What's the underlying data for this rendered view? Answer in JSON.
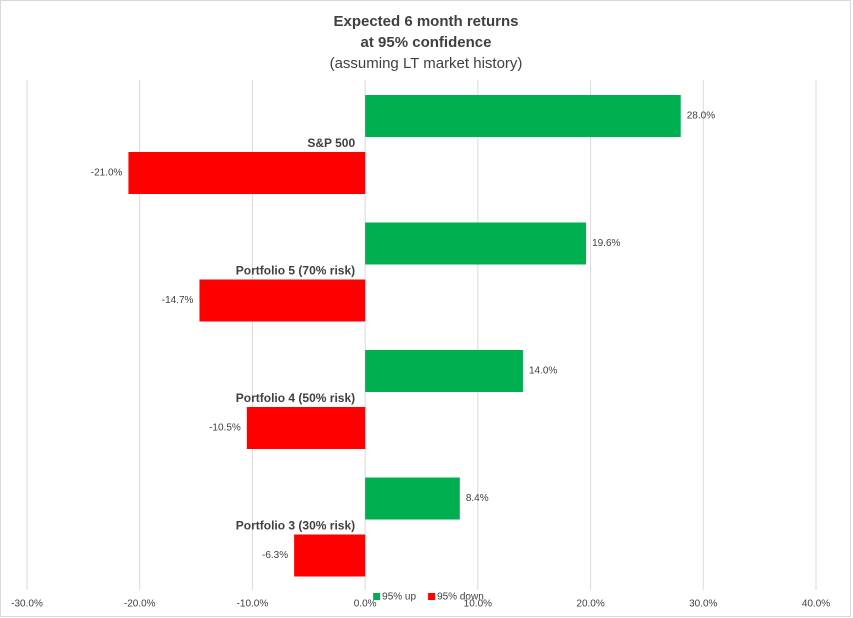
{
  "chart_data": {
    "type": "hbar",
    "title": [
      "Expected 6 month returns",
      "at 95% confidence"
    ],
    "subtitle": "(assuming LT market history)",
    "categories": [
      "S&P 500",
      "Portfolio 5 (70% risk)",
      "Portfolio 4 (50% risk)",
      "Portfolio 3 (30% risk)"
    ],
    "series": [
      {
        "name": "95% up",
        "color": "#00b050",
        "values": [
          28.0,
          19.6,
          14.0,
          8.4
        ],
        "value_labels": [
          "28.0%",
          "19.6%",
          "14.0%",
          "8.4%"
        ]
      },
      {
        "name": "95% down",
        "color": "#ff0000",
        "values": [
          -21.0,
          -14.7,
          -10.5,
          -6.3
        ],
        "value_labels": [
          "-21.0%",
          "-14.7%",
          "-10.5%",
          "-6.3%"
        ]
      }
    ],
    "xlim": [
      -30,
      40
    ],
    "xticks": [
      {
        "value": -30,
        "label": "-30.0%"
      },
      {
        "value": -20,
        "label": "-20.0%"
      },
      {
        "value": -10,
        "label": "-10.0%"
      },
      {
        "value": 0,
        "label": "0.0%"
      },
      {
        "value": 10,
        "label": "10.0%"
      },
      {
        "value": 20,
        "label": "20.0%"
      },
      {
        "value": 30,
        "label": "30.0%"
      },
      {
        "value": 40,
        "label": "40.0%"
      }
    ],
    "grid": true,
    "legend": "bottom"
  }
}
